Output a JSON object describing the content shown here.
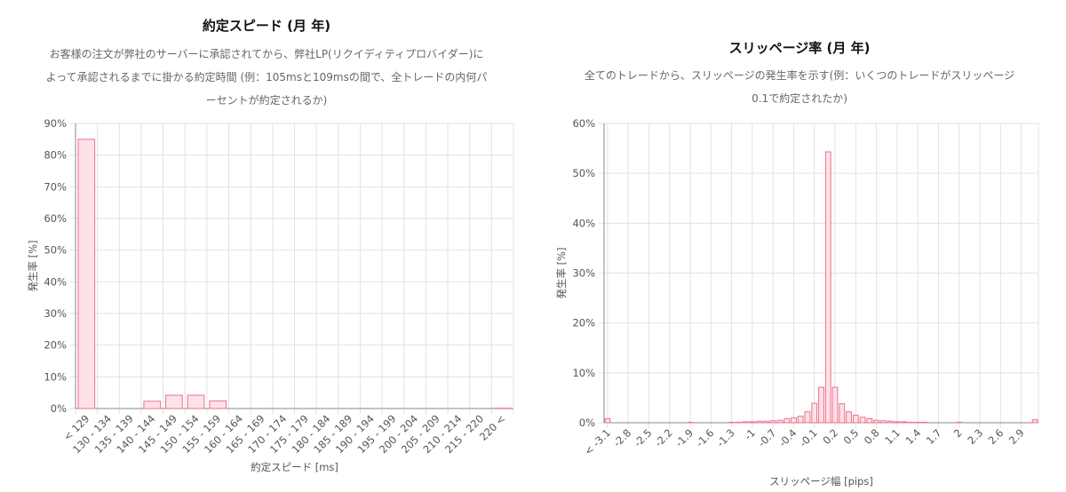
{
  "colors": {
    "bar_fill": "#fde2e7",
    "bar_stroke": "#ef6f8e",
    "grid": "#e2e2e2",
    "axis": "#888888"
  },
  "chart_data": [
    {
      "type": "bar",
      "title": "約定スピード (月 年)",
      "description": [
        "お客様の注文が弊社のサーバーに承認されてから、弊社LP(リクイディティプロバイダー)に",
        "よって承認されるまでに掛かる約定時間 (例：105msと109msの間で、全トレードの内何パ",
        "ーセントが約定されるか)"
      ],
      "xlabel": "約定スピード [ms]",
      "ylabel": "発生率 [%]",
      "ylim": [
        0,
        90
      ],
      "yticks": [
        "0%",
        "10%",
        "20%",
        "30%",
        "40%",
        "50%",
        "60%",
        "70%",
        "80%",
        "90%"
      ],
      "grid": true,
      "categories": [
        "< 129",
        "130 - 134",
        "135 - 139",
        "140 - 144",
        "145 - 149",
        "150 - 154",
        "155 - 159",
        "160 - 164",
        "165 - 169",
        "170 - 174",
        "175 - 179",
        "180 - 184",
        "185 - 189",
        "190 - 194",
        "195 - 199",
        "200 - 204",
        "205 - 209",
        "210 - 214",
        "215 - 220",
        "220 <"
      ],
      "values": [
        85,
        0,
        0,
        2.3,
        4.2,
        4.2,
        2.4,
        0,
        0,
        0,
        0,
        0,
        0,
        0,
        0,
        0,
        0,
        0,
        0,
        0.1
      ]
    },
    {
      "type": "bar",
      "title": "スリッページ率 (月 年)",
      "description": [
        "全てのトレードから、スリッページの発生率を示す(例：いくつのトレードがスリッページ",
        "0.1で約定されたか)"
      ],
      "xlabel": "スリッページ幅 [pips]",
      "ylabel": "発生率 [%]",
      "ylim": [
        0,
        60
      ],
      "yticks": [
        "0%",
        "10%",
        "20%",
        "30%",
        "40%",
        "50%",
        "60%"
      ],
      "grid": true,
      "xtick_labels": [
        "< -3.1",
        "-2.8",
        "-2.5",
        "-2.2",
        "-1.9",
        "-1.6",
        "-1.3",
        "-1",
        "-0.7",
        "-0.4",
        "-0.1",
        "0.2",
        "0.5",
        "0.8",
        "1.1",
        "1.4",
        "1.7",
        "2",
        "2.3",
        "2.6",
        "2.9"
      ],
      "x": [
        -3.1,
        -3.0,
        -2.9,
        -2.8,
        -2.7,
        -2.6,
        -2.5,
        -2.4,
        -2.3,
        -2.2,
        -2.1,
        -2.0,
        -1.9,
        -1.8,
        -1.7,
        -1.6,
        -1.5,
        -1.4,
        -1.3,
        -1.2,
        -1.1,
        -1.0,
        -0.9,
        -0.8,
        -0.7,
        -0.6,
        -0.5,
        -0.4,
        -0.3,
        -0.2,
        -0.1,
        0.0,
        0.1,
        0.2,
        0.3,
        0.4,
        0.5,
        0.6,
        0.7,
        0.8,
        0.9,
        1.0,
        1.1,
        1.2,
        1.3,
        1.4,
        1.5,
        1.6,
        1.7,
        1.8,
        1.9,
        2.0,
        2.1,
        2.2,
        2.3,
        2.4,
        2.5,
        2.6,
        2.7,
        2.8,
        2.9,
        3.0,
        3.1
      ],
      "values": [
        0.8,
        0,
        0,
        0,
        0,
        0,
        0,
        0,
        0,
        0,
        0,
        0,
        0.1,
        0,
        0,
        0,
        0,
        0,
        0.1,
        0.1,
        0.2,
        0.2,
        0.3,
        0.3,
        0.4,
        0.5,
        0.8,
        1.0,
        1.3,
        2.2,
        3.9,
        7.1,
        54.3,
        7.1,
        3.8,
        2.2,
        1.5,
        1.1,
        0.8,
        0.5,
        0.4,
        0.3,
        0.2,
        0.2,
        0.1,
        0.1,
        0.1,
        0,
        0,
        0,
        0,
        0.1,
        0,
        0,
        0,
        0,
        0,
        0,
        0,
        0,
        0,
        0,
        0.6
      ]
    }
  ]
}
